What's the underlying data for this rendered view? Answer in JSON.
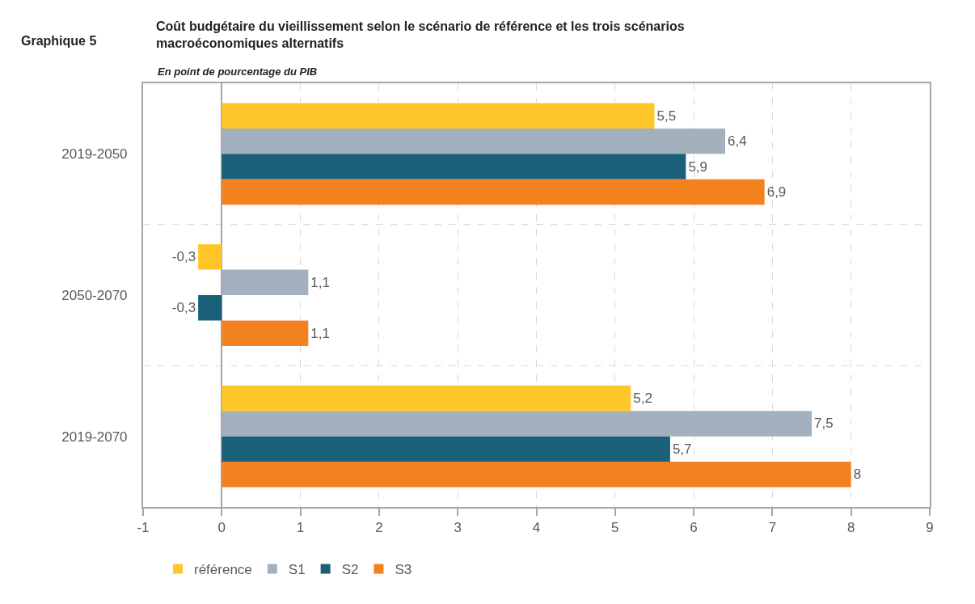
{
  "chart_data": {
    "type": "bar",
    "orientation": "horizontal",
    "title": "Coût budgétaire du vieillissement selon le scénario de référence et les trois scénarios macroéconomiques alternatifs",
    "subtitle": "En point de pourcentage du PIB",
    "annotations": [
      "Graphique 5"
    ],
    "categories": [
      "2019-2050",
      "2050-2070",
      "2019-2070"
    ],
    "series": [
      {
        "name": "référence",
        "color": "#ffc629",
        "values": [
          5.5,
          -0.3,
          5.2
        ],
        "value_labels": [
          "5,5",
          "-0,3",
          "5,2"
        ]
      },
      {
        "name": "S1",
        "color": "#a3b0bd",
        "values": [
          6.4,
          1.1,
          7.5
        ],
        "value_labels": [
          "6,4",
          "1,1",
          "7,5"
        ]
      },
      {
        "name": "S2",
        "color": "#1b6079",
        "values": [
          5.9,
          -0.3,
          5.7
        ],
        "value_labels": [
          "5,9",
          "-0,3",
          "5,7"
        ]
      },
      {
        "name": "S3",
        "color": "#f48120",
        "values": [
          6.9,
          1.1,
          8
        ],
        "value_labels": [
          "6,9",
          "1,1",
          "8"
        ]
      }
    ],
    "xlim": [
      -1,
      9
    ],
    "xticks": [
      -1,
      0,
      1,
      2,
      3,
      4,
      5,
      6,
      7,
      8,
      9
    ],
    "grid": true,
    "legend": "bottom left"
  }
}
